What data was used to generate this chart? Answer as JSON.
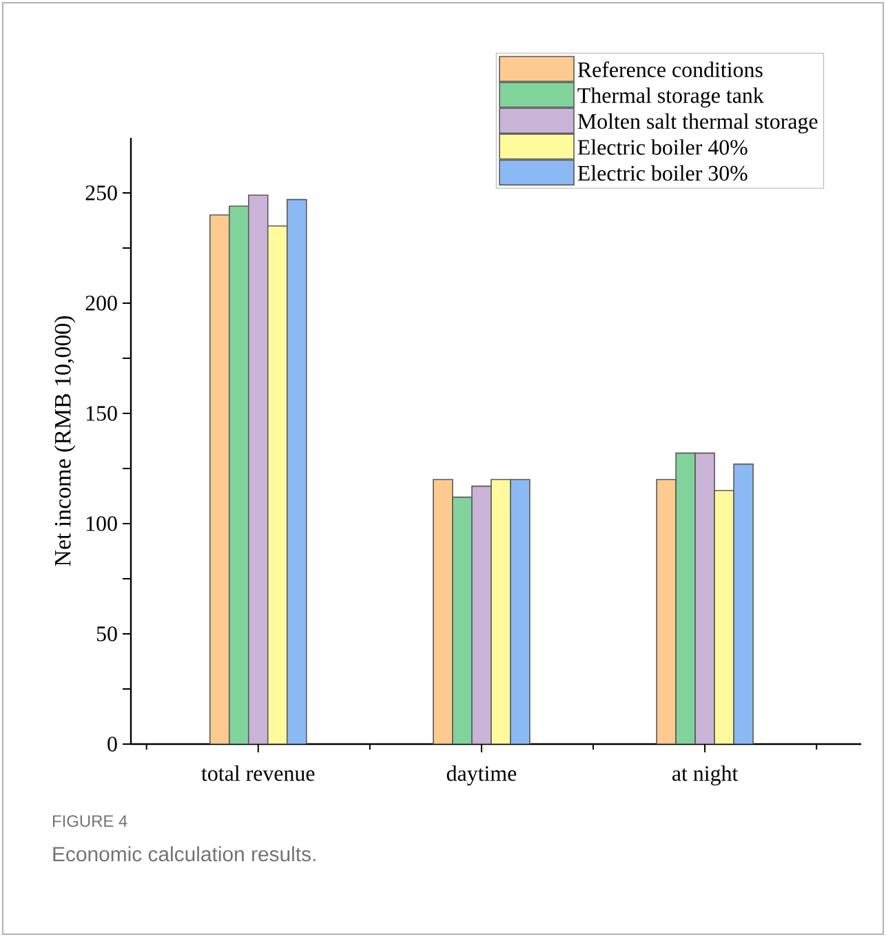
{
  "chart_data": {
    "type": "bar",
    "ylabel": "Net income (RMB 10,000)",
    "categories": [
      "total revenue",
      "daytime",
      "at night"
    ],
    "series": [
      {
        "name": "Reference conditions",
        "color": "#fdcb8f",
        "values": [
          240,
          120,
          120
        ]
      },
      {
        "name": "Thermal storage tank",
        "color": "#80d49b",
        "values": [
          244,
          112,
          132
        ]
      },
      {
        "name": "Molten salt thermal storage",
        "color": "#c9b3d6",
        "values": [
          249,
          117,
          132
        ]
      },
      {
        "name": "Electric boiler 40%",
        "color": "#fffb9d",
        "values": [
          235,
          120,
          115
        ]
      },
      {
        "name": "Electric boiler 30%",
        "color": "#8bb9f4",
        "values": [
          247,
          120,
          127
        ]
      }
    ],
    "ylim": [
      0,
      275
    ],
    "yticks": [
      0,
      {
        "value": 25,
        "label": null
      },
      50,
      {
        "value": 75,
        "label": null
      },
      100,
      {
        "value": 125,
        "label": null
      },
      150,
      {
        "value": 175,
        "label": null
      },
      200,
      {
        "value": 225,
        "label": null
      },
      250
    ],
    "legend": "top right",
    "grid": false,
    "annotations": [
      "FIGURE 4",
      "Economic calculation results."
    ]
  }
}
